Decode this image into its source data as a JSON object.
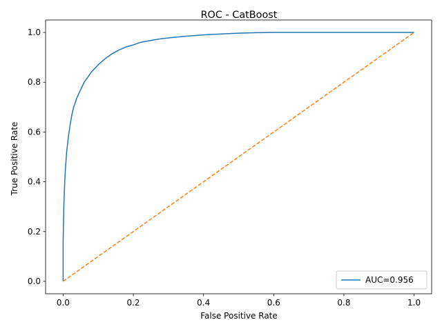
{
  "chart_data": {
    "type": "line",
    "title": "ROC - CatBoost",
    "xlabel": "False Positive Rate",
    "ylabel": "True Positive Rate",
    "xlim": [
      -0.05,
      1.05
    ],
    "ylim": [
      -0.05,
      1.05
    ],
    "xticks": [
      "0.0",
      "0.2",
      "0.4",
      "0.6",
      "0.8",
      "1.0"
    ],
    "yticks": [
      "0.0",
      "0.2",
      "0.4",
      "0.6",
      "0.8",
      "1.0"
    ],
    "grid": false,
    "legend_position": "lower-right",
    "series": [
      {
        "name": "AUC=0.956",
        "color": "#1f77b4",
        "style": "solid",
        "x": [
          0.0,
          0.0,
          0.002,
          0.004,
          0.006,
          0.008,
          0.01,
          0.015,
          0.02,
          0.025,
          0.03,
          0.035,
          0.04,
          0.05,
          0.06,
          0.07,
          0.08,
          0.09,
          0.1,
          0.12,
          0.14,
          0.16,
          0.18,
          0.2,
          0.22,
          0.25,
          0.28,
          0.3,
          0.35,
          0.4,
          0.45,
          0.5,
          0.55,
          0.6,
          0.7,
          0.8,
          0.9,
          1.0
        ],
        "y": [
          0.0,
          0.16,
          0.3,
          0.38,
          0.44,
          0.48,
          0.52,
          0.58,
          0.63,
          0.67,
          0.7,
          0.72,
          0.74,
          0.77,
          0.8,
          0.82,
          0.84,
          0.855,
          0.87,
          0.895,
          0.915,
          0.93,
          0.942,
          0.95,
          0.96,
          0.968,
          0.975,
          0.978,
          0.985,
          0.99,
          0.994,
          0.997,
          0.999,
          1.0,
          1.0,
          1.0,
          1.0,
          1.0
        ]
      },
      {
        "name": "",
        "color": "#ff7f0e",
        "style": "dashed",
        "x": [
          0.0,
          1.0
        ],
        "y": [
          0.0,
          1.0
        ]
      }
    ]
  }
}
